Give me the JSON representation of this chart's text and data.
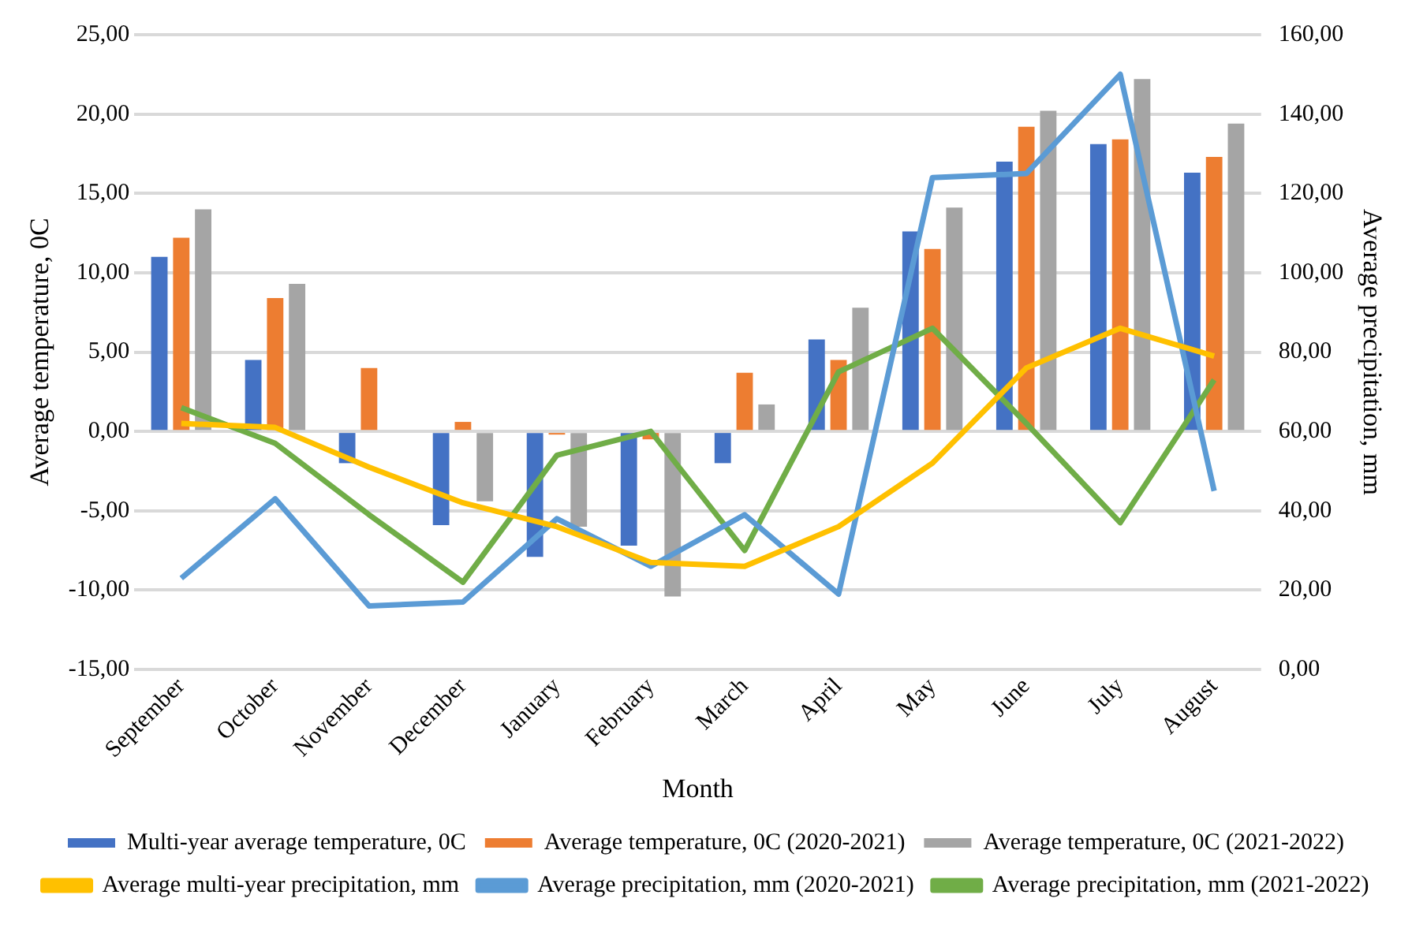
{
  "chart_data": {
    "type": "bar",
    "xlabel": "Month",
    "ylabel": "Average temperature, 0C",
    "y2label": "Average precipitation, mm",
    "categories": [
      "September",
      "October",
      "November",
      "December",
      "January",
      "February",
      "March",
      "April",
      "May",
      "June",
      "July",
      "August"
    ],
    "series": [
      {
        "name": "Multi-year average temperature, 0C",
        "color": "#4472c4",
        "values": [
          11.0,
          4.5,
          -2.0,
          -5.9,
          -7.9,
          -7.2,
          -2.0,
          5.8,
          12.6,
          17.0,
          18.1,
          16.3
        ]
      },
      {
        "name": "Average temperature, 0C (2020-2021)",
        "color": "#ed7d31",
        "values": [
          12.2,
          8.4,
          4.0,
          0.6,
          -0.2,
          -0.5,
          3.7,
          4.5,
          11.5,
          19.2,
          18.4,
          17.3
        ]
      },
      {
        "name": "Average temperature, 0C (2021-2022)",
        "color": "#a5a5a5",
        "values": [
          14.0,
          9.3,
          null,
          -4.4,
          -6.0,
          -10.4,
          1.7,
          7.8,
          14.1,
          20.2,
          22.2,
          19.4
        ]
      },
      {
        "name": "Average multi-year precipitation, mm",
        "type": "line",
        "axis": "y2",
        "color": "#ffc000",
        "values": [
          62,
          61,
          51,
          42,
          36,
          27,
          26,
          36,
          52,
          76,
          86,
          79
        ]
      },
      {
        "name": "Average precipitation, mm (2020-2021)",
        "type": "line",
        "axis": "y2",
        "color": "#5b9bd5",
        "values": [
          23,
          43,
          16,
          17,
          38,
          26,
          39,
          19,
          124,
          125,
          150,
          45
        ]
      },
      {
        "name": "Average precipitation, mm (2021-2022)",
        "type": "line",
        "axis": "y2",
        "color": "#70ad47",
        "values": [
          66,
          57,
          39,
          22,
          54,
          60,
          30,
          75,
          86,
          62,
          37,
          73
        ]
      }
    ],
    "ylim": [
      -15,
      25
    ],
    "yticks": [
      {
        "value": -15,
        "label": "-15,00"
      },
      {
        "value": -10,
        "label": "-10,00"
      },
      {
        "value": -5,
        "label": "-5,00"
      },
      {
        "value": 0,
        "label": "0,00"
      },
      {
        "value": 5,
        "label": "5,00"
      },
      {
        "value": 10,
        "label": "10,00"
      },
      {
        "value": 15,
        "label": "15,00"
      },
      {
        "value": 20,
        "label": "20,00"
      },
      {
        "value": 25,
        "label": "25,00"
      }
    ],
    "y2lim": [
      0,
      160
    ],
    "y2ticks": [
      {
        "value": 0,
        "label": "0,00"
      },
      {
        "value": 20,
        "label": "20,00"
      },
      {
        "value": 40,
        "label": "40,00"
      },
      {
        "value": 60,
        "label": "60,00"
      },
      {
        "value": 80,
        "label": "80,00"
      },
      {
        "value": 100,
        "label": "100,00"
      },
      {
        "value": 120,
        "label": "120,00"
      },
      {
        "value": 140,
        "label": "140,00"
      },
      {
        "value": 160,
        "label": "160,00"
      }
    ],
    "grid": "y",
    "legend": "bottom",
    "marker": "none",
    "line_style": "solid"
  }
}
